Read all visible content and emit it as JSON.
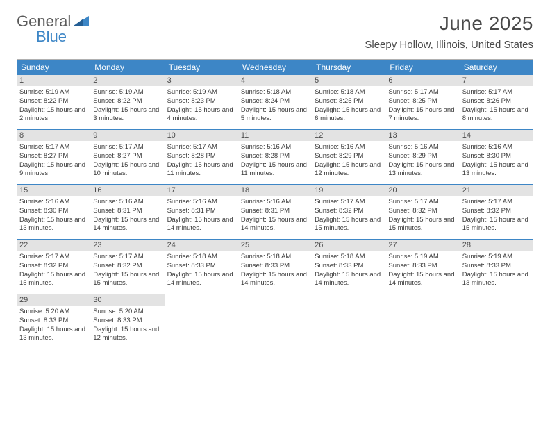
{
  "brand": {
    "general": "General",
    "blue": "Blue"
  },
  "title": "June 2025",
  "location": "Sleepy Hollow, Illinois, United States",
  "colors": {
    "header_bg": "#3d86c6",
    "header_text": "#ffffff",
    "daynum_bg": "#e3e3e3",
    "text": "#3a3a3a",
    "rule": "#3d86c6"
  },
  "dow": [
    "Sunday",
    "Monday",
    "Tuesday",
    "Wednesday",
    "Thursday",
    "Friday",
    "Saturday"
  ],
  "days": [
    {
      "n": "1",
      "sr": "5:19 AM",
      "ss": "8:22 PM",
      "dl": "15 hours and 2 minutes."
    },
    {
      "n": "2",
      "sr": "5:19 AM",
      "ss": "8:22 PM",
      "dl": "15 hours and 3 minutes."
    },
    {
      "n": "3",
      "sr": "5:19 AM",
      "ss": "8:23 PM",
      "dl": "15 hours and 4 minutes."
    },
    {
      "n": "4",
      "sr": "5:18 AM",
      "ss": "8:24 PM",
      "dl": "15 hours and 5 minutes."
    },
    {
      "n": "5",
      "sr": "5:18 AM",
      "ss": "8:25 PM",
      "dl": "15 hours and 6 minutes."
    },
    {
      "n": "6",
      "sr": "5:17 AM",
      "ss": "8:25 PM",
      "dl": "15 hours and 7 minutes."
    },
    {
      "n": "7",
      "sr": "5:17 AM",
      "ss": "8:26 PM",
      "dl": "15 hours and 8 minutes."
    },
    {
      "n": "8",
      "sr": "5:17 AM",
      "ss": "8:27 PM",
      "dl": "15 hours and 9 minutes."
    },
    {
      "n": "9",
      "sr": "5:17 AM",
      "ss": "8:27 PM",
      "dl": "15 hours and 10 minutes."
    },
    {
      "n": "10",
      "sr": "5:17 AM",
      "ss": "8:28 PM",
      "dl": "15 hours and 11 minutes."
    },
    {
      "n": "11",
      "sr": "5:16 AM",
      "ss": "8:28 PM",
      "dl": "15 hours and 11 minutes."
    },
    {
      "n": "12",
      "sr": "5:16 AM",
      "ss": "8:29 PM",
      "dl": "15 hours and 12 minutes."
    },
    {
      "n": "13",
      "sr": "5:16 AM",
      "ss": "8:29 PM",
      "dl": "15 hours and 13 minutes."
    },
    {
      "n": "14",
      "sr": "5:16 AM",
      "ss": "8:30 PM",
      "dl": "15 hours and 13 minutes."
    },
    {
      "n": "15",
      "sr": "5:16 AM",
      "ss": "8:30 PM",
      "dl": "15 hours and 13 minutes."
    },
    {
      "n": "16",
      "sr": "5:16 AM",
      "ss": "8:31 PM",
      "dl": "15 hours and 14 minutes."
    },
    {
      "n": "17",
      "sr": "5:16 AM",
      "ss": "8:31 PM",
      "dl": "15 hours and 14 minutes."
    },
    {
      "n": "18",
      "sr": "5:16 AM",
      "ss": "8:31 PM",
      "dl": "15 hours and 14 minutes."
    },
    {
      "n": "19",
      "sr": "5:17 AM",
      "ss": "8:32 PM",
      "dl": "15 hours and 15 minutes."
    },
    {
      "n": "20",
      "sr": "5:17 AM",
      "ss": "8:32 PM",
      "dl": "15 hours and 15 minutes."
    },
    {
      "n": "21",
      "sr": "5:17 AM",
      "ss": "8:32 PM",
      "dl": "15 hours and 15 minutes."
    },
    {
      "n": "22",
      "sr": "5:17 AM",
      "ss": "8:32 PM",
      "dl": "15 hours and 15 minutes."
    },
    {
      "n": "23",
      "sr": "5:17 AM",
      "ss": "8:32 PM",
      "dl": "15 hours and 15 minutes."
    },
    {
      "n": "24",
      "sr": "5:18 AM",
      "ss": "8:33 PM",
      "dl": "15 hours and 14 minutes."
    },
    {
      "n": "25",
      "sr": "5:18 AM",
      "ss": "8:33 PM",
      "dl": "15 hours and 14 minutes."
    },
    {
      "n": "26",
      "sr": "5:18 AM",
      "ss": "8:33 PM",
      "dl": "15 hours and 14 minutes."
    },
    {
      "n": "27",
      "sr": "5:19 AM",
      "ss": "8:33 PM",
      "dl": "15 hours and 14 minutes."
    },
    {
      "n": "28",
      "sr": "5:19 AM",
      "ss": "8:33 PM",
      "dl": "15 hours and 13 minutes."
    },
    {
      "n": "29",
      "sr": "5:20 AM",
      "ss": "8:33 PM",
      "dl": "15 hours and 13 minutes."
    },
    {
      "n": "30",
      "sr": "5:20 AM",
      "ss": "8:33 PM",
      "dl": "15 hours and 12 minutes."
    }
  ],
  "labels": {
    "sunrise": "Sunrise:",
    "sunset": "Sunset:",
    "daylight": "Daylight:"
  }
}
